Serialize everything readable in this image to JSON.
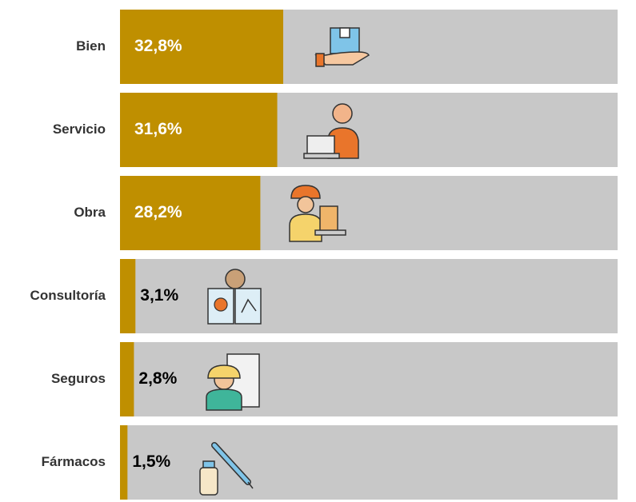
{
  "chart_data": {
    "type": "bar",
    "orientation": "horizontal",
    "categories": [
      "Bien",
      "Servicio",
      "Obra",
      "Consultoría",
      "Seguros",
      "Fármacos"
    ],
    "values": [
      32.8,
      31.6,
      28.2,
      3.1,
      2.8,
      1.5
    ],
    "value_labels": [
      "32,8%",
      "31,6%",
      "28,2%",
      "3,1%",
      "2,8%",
      "1,5%"
    ],
    "color": "#bf8f00",
    "track_color": "#c8c8c8",
    "xlim": [
      0,
      100
    ]
  }
}
